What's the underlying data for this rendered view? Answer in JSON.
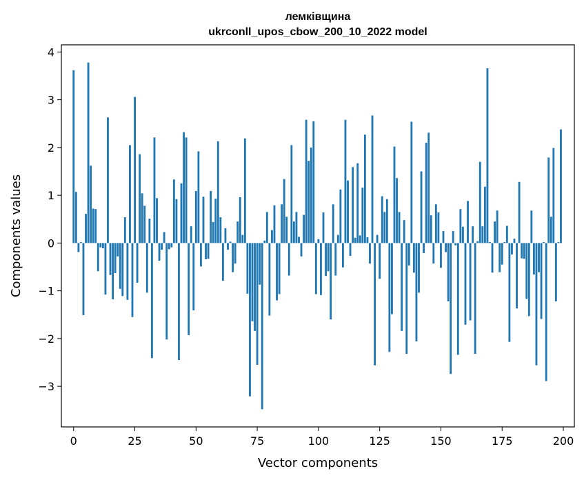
{
  "chart_data": {
    "type": "bar",
    "title": "лемківщина",
    "subtitle": "ukrconll_upos_cbow_200_10_2022 model",
    "xlabel": "Vector components",
    "ylabel": "Components values",
    "xlim": [
      -5,
      204.5
    ],
    "ylim": [
      -3.85,
      4.15
    ],
    "xticks": [
      0,
      25,
      50,
      75,
      100,
      125,
      150,
      175,
      200
    ],
    "yticks": [
      -3,
      -2,
      -1,
      0,
      1,
      2,
      3,
      4
    ],
    "xtick_labels": [
      "0",
      "25",
      "50",
      "75",
      "100",
      "125",
      "150",
      "175",
      "200"
    ],
    "ytick_labels": [
      "−3",
      "−2",
      "−1",
      "0",
      "1",
      "2",
      "3",
      "4"
    ],
    "grid": false,
    "bar_color": "#1f77b4",
    "values": [
      3.62,
      1.07,
      -0.19,
      0.02,
      -1.51,
      0.61,
      3.78,
      1.62,
      0.72,
      0.71,
      -0.59,
      -0.09,
      -0.11,
      -1.08,
      2.63,
      -0.67,
      -1.18,
      -0.63,
      -0.28,
      -0.96,
      -1.11,
      0.54,
      -1.19,
      2.05,
      -1.55,
      3.06,
      -0.83,
      1.86,
      1.04,
      0.78,
      -1.04,
      0.51,
      -2.41,
      2.21,
      0.94,
      -0.37,
      -0.14,
      0.23,
      -2.02,
      -0.13,
      -0.09,
      1.33,
      0.92,
      -2.45,
      1.25,
      2.32,
      2.21,
      -1.93,
      0.35,
      -1.41,
      1.09,
      1.92,
      -0.49,
      0.97,
      -0.34,
      -0.33,
      1.09,
      0.44,
      0.93,
      2.13,
      0.54,
      -0.79,
      0.31,
      -0.14,
      0.03,
      -0.61,
      -0.43,
      0.45,
      0.96,
      0.17,
      2.19,
      -1.06,
      -3.21,
      -1.64,
      -1.84,
      -2.55,
      -0.87,
      -3.48,
      0.05,
      0.65,
      -1.52,
      0.27,
      0.79,
      -1.2,
      -1.07,
      0.81,
      1.34,
      0.55,
      -0.68,
      2.05,
      0.45,
      0.65,
      0.13,
      -0.28,
      0.59,
      2.58,
      1.72,
      2.0,
      2.55,
      -1.07,
      0.08,
      -1.09,
      0.64,
      -0.69,
      -0.59,
      -1.6,
      0.81,
      -0.68,
      0.17,
      1.12,
      -0.51,
      2.58,
      1.31,
      -0.27,
      1.59,
      0.11,
      1.67,
      0.16,
      1.16,
      2.27,
      0.12,
      -0.43,
      2.67,
      -2.56,
      0.17,
      -0.75,
      0.98,
      0.65,
      0.92,
      -2.28,
      -1.49,
      2.02,
      1.36,
      0.65,
      -1.84,
      0.48,
      -2.32,
      -0.47,
      2.54,
      -0.62,
      -2.06,
      -1.04,
      1.5,
      -0.21,
      2.1,
      2.31,
      0.58,
      -0.43,
      0.81,
      0.64,
      -0.52,
      0.25,
      -0.19,
      -1.22,
      -2.74,
      0.25,
      -0.05,
      -2.34,
      0.71,
      0.34,
      -1.71,
      0.88,
      -1.62,
      0.35,
      -2.32,
      0.04,
      1.7,
      0.35,
      1.18,
      3.66,
      0.02,
      -0.62,
      0.45,
      0.68,
      -0.61,
      -0.45,
      0.02,
      0.36,
      -2.07,
      -0.24,
      0.09,
      -1.37,
      1.28,
      -0.32,
      -0.33,
      -1.17,
      -1.53,
      0.68,
      -0.66,
      -2.56,
      -0.61,
      -1.59,
      0.02,
      -2.89,
      1.79,
      0.55,
      1.99,
      -1.22,
      0.02,
      2.38
    ]
  }
}
